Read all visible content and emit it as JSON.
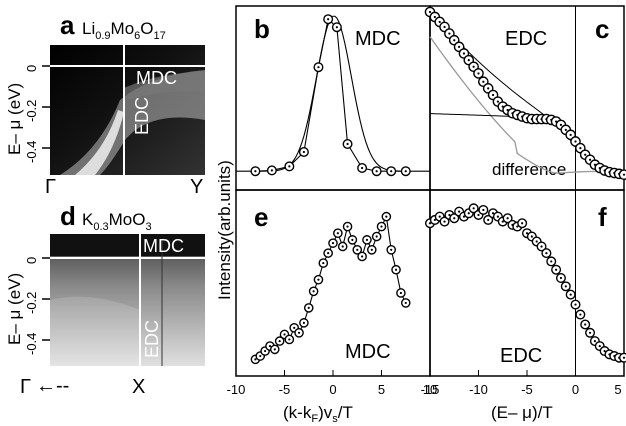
{
  "chart_data": [
    {
      "panel": "a",
      "type": "heatmap",
      "title": "Li0.9Mo6O17",
      "title_parts": {
        "a": "Li",
        "b": "0.9",
        "c": "Mo",
        "d": "6",
        "e": "O",
        "f": "17"
      },
      "ylabel": "E– μ (eV)",
      "yticks": [
        "0",
        "-0.2",
        "-0.4"
      ],
      "ylim": [
        -0.5,
        0.07
      ],
      "x_labels": [
        "Γ",
        "Y"
      ],
      "annotations": [
        "MDC",
        "EDC"
      ]
    },
    {
      "panel": "d",
      "type": "heatmap",
      "title": "K0.3MoO3",
      "title_parts": {
        "a": "K",
        "b": "0.3",
        "c": "MoO",
        "d": "3"
      },
      "ylabel": "E– μ (eV)",
      "yticks": [
        "0",
        "-0.2",
        "-0.4"
      ],
      "ylim": [
        -0.5,
        0.07
      ],
      "x_labels": [
        "Γ",
        "X"
      ],
      "annotations": [
        "MDC",
        "EDC"
      ]
    },
    {
      "panel": "b",
      "type": "line",
      "annotation": "MDC",
      "xlim": [
        -10,
        10
      ],
      "series": [
        {
          "x": [
            -8,
            -6.3,
            -4.5,
            -3,
            -1.5,
            -0.5,
            0.4,
            1.5,
            3,
            4.5,
            6,
            7.5
          ],
          "y": [
            0.03,
            0.035,
            0.06,
            0.15,
            0.68,
            0.98,
            0.93,
            0.2,
            0.05,
            0.03,
            0.03,
            0.03
          ]
        }
      ],
      "fit": {
        "center": 0.1,
        "width": 1.8,
        "amplitude": 1.0
      }
    },
    {
      "panel": "c",
      "type": "scatter",
      "annotations": [
        "EDC",
        "difference"
      ],
      "xlim": [
        -15,
        5
      ],
      "edc_points": [
        [
          -15,
          1.0
        ],
        [
          -14.5,
          0.97
        ],
        [
          -14,
          0.94
        ],
        [
          -13.5,
          0.91
        ],
        [
          -13,
          0.87
        ],
        [
          -12.5,
          0.83
        ],
        [
          -12,
          0.79
        ],
        [
          -11.5,
          0.75
        ],
        [
          -11,
          0.71
        ],
        [
          -10.5,
          0.67
        ],
        [
          -10,
          0.63
        ],
        [
          -9.5,
          0.58
        ],
        [
          -9,
          0.54
        ],
        [
          -8.5,
          0.5
        ],
        [
          -8,
          0.46
        ],
        [
          -7.5,
          0.43
        ],
        [
          -7,
          0.41
        ],
        [
          -6.5,
          0.39
        ],
        [
          -6,
          0.38
        ],
        [
          -5.5,
          0.37
        ],
        [
          -5,
          0.36
        ],
        [
          -4.5,
          0.355
        ],
        [
          -4,
          0.355
        ],
        [
          -3.5,
          0.355
        ],
        [
          -3,
          0.355
        ],
        [
          -2.5,
          0.35
        ],
        [
          -2,
          0.34
        ],
        [
          -1.5,
          0.32
        ],
        [
          -1,
          0.29
        ],
        [
          -0.5,
          0.26
        ],
        [
          0,
          0.22
        ],
        [
          0.5,
          0.18
        ],
        [
          1,
          0.14
        ],
        [
          1.5,
          0.11
        ],
        [
          2,
          0.08
        ],
        [
          2.5,
          0.06
        ],
        [
          3,
          0.045
        ],
        [
          3.5,
          0.035
        ],
        [
          4,
          0.03
        ],
        [
          4.5,
          0.025
        ],
        [
          5,
          0.02
        ]
      ]
    },
    {
      "panel": "e",
      "type": "line",
      "annotation": "MDC",
      "xlim": [
        -10,
        10
      ],
      "series": [
        {
          "x": [
            -8,
            -7.5,
            -7,
            -6.5,
            -6,
            -5.5,
            -5,
            -4.5,
            -4,
            -3.5,
            -3,
            -2.5,
            -2,
            -1.5,
            -1,
            -0.5,
            0,
            0.5,
            1,
            1.5,
            2,
            2.5,
            3,
            3.5,
            4,
            4.5,
            5,
            5.5,
            6,
            6.5,
            7,
            7.5
          ],
          "y": [
            0.04,
            0.06,
            0.09,
            0.12,
            0.1,
            0.15,
            0.19,
            0.16,
            0.23,
            0.2,
            0.26,
            0.35,
            0.45,
            0.52,
            0.62,
            0.68,
            0.74,
            0.8,
            0.72,
            0.84,
            0.76,
            0.7,
            0.66,
            0.76,
            0.7,
            0.78,
            0.84,
            0.9,
            0.7,
            0.58,
            0.44,
            0.38
          ]
        }
      ]
    },
    {
      "panel": "f",
      "type": "scatter",
      "annotation": "EDC",
      "xlim": [
        -15,
        5
      ],
      "xticks": [
        "-15",
        "-10",
        "-5",
        "0",
        "5"
      ],
      "points": [
        [
          -15,
          0.86
        ],
        [
          -14.5,
          0.88
        ],
        [
          -14,
          0.9
        ],
        [
          -13.5,
          0.87
        ],
        [
          -13,
          0.91
        ],
        [
          -12.5,
          0.89
        ],
        [
          -12,
          0.93
        ],
        [
          -11.5,
          0.9
        ],
        [
          -11,
          0.92
        ],
        [
          -10.5,
          0.95
        ],
        [
          -10,
          0.91
        ],
        [
          -9.5,
          0.94
        ],
        [
          -9,
          0.88
        ],
        [
          -8.5,
          0.92
        ],
        [
          -8,
          0.9
        ],
        [
          -7.5,
          0.87
        ],
        [
          -7,
          0.89
        ],
        [
          -6.5,
          0.85
        ],
        [
          -6,
          0.84
        ],
        [
          -5.5,
          0.86
        ],
        [
          -5,
          0.8
        ],
        [
          -4.5,
          0.78
        ],
        [
          -4,
          0.75
        ],
        [
          -3.5,
          0.72
        ],
        [
          -3,
          0.68
        ],
        [
          -2.5,
          0.63
        ],
        [
          -2,
          0.58
        ],
        [
          -1.5,
          0.53
        ],
        [
          -1,
          0.48
        ],
        [
          -0.5,
          0.43
        ],
        [
          0,
          0.37
        ],
        [
          0.5,
          0.31
        ],
        [
          1,
          0.25
        ],
        [
          1.5,
          0.2
        ],
        [
          2,
          0.15
        ],
        [
          2.5,
          0.12
        ],
        [
          3,
          0.09
        ],
        [
          3.5,
          0.07
        ],
        [
          4,
          0.06
        ],
        [
          4.5,
          0.05
        ],
        [
          5,
          0.05
        ]
      ]
    }
  ],
  "panels": {
    "a": "a",
    "b": "b",
    "c": "c",
    "d": "d",
    "e": "e",
    "f": "f"
  },
  "shared": {
    "ylabel_right": "Intensity(arb.units)",
    "xlabel_mdc": "(k-k",
    "xlabel_mdc_sub": "F",
    "xlabel_mdc_mid": ")v",
    "xlabel_mdc_sub2": "s",
    "xlabel_mdc_end": "/T",
    "xlabel_edc": "(E– μ)/T",
    "mdc_xticks": [
      "-10",
      "-5",
      "0",
      "5",
      "10"
    ]
  },
  "gamma_arrow": "Γ←--"
}
